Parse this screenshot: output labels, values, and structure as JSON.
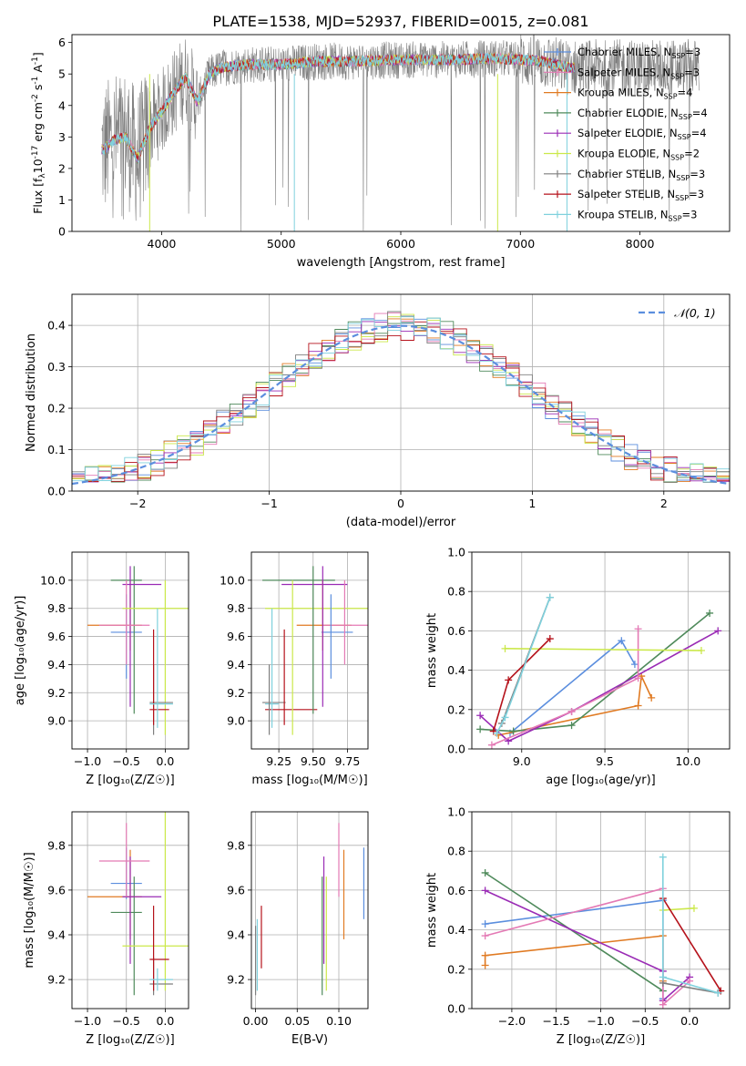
{
  "title": "PLATE=1538, MJD=52937, FIBERID=0015, z=0.081",
  "colors": [
    "#5b8ede",
    "#e07a22",
    "#4f8a5b",
    "#9a2bb5",
    "#e47ab5",
    "#cbe84a",
    "#7f7f7f",
    "#b5121b",
    "#7fd1dd"
  ],
  "chart_data": [
    {
      "type": "line",
      "id": "spectrum",
      "xlabel": "wavelength [Angstrom, rest frame]",
      "ylabel_parts": [
        "Flux [f",
        "λ",
        "10",
        "-17",
        " erg cm",
        "-2",
        " s",
        "-1",
        " A",
        "-1",
        "]"
      ],
      "xlim": [
        3250,
        8750
      ],
      "ylim": [
        0,
        6.25
      ],
      "xticks": [
        4000,
        5000,
        6000,
        7000,
        8000
      ],
      "yticks": [
        0,
        1,
        2,
        3,
        4,
        5,
        6
      ],
      "continuum": {
        "wavelength": [
          3520,
          3600,
          3700,
          3800,
          3900,
          4000,
          4100,
          4200,
          4300,
          4400,
          4500,
          4700,
          5000,
          5300,
          5600,
          6000,
          6400,
          6800,
          7200,
          7400
        ],
        "flux": [
          2.6,
          2.9,
          3.0,
          2.3,
          3.3,
          3.8,
          4.4,
          4.9,
          4.1,
          5.0,
          5.2,
          5.3,
          5.3,
          5.4,
          5.4,
          5.45,
          5.45,
          5.5,
          5.4,
          5.2
        ]
      },
      "data_range": [
        3500,
        8500
      ],
      "model_range": [
        3500,
        7450
      ],
      "legend": [
        {
          "label": "Chabrier MILES",
          "nssp": "3",
          "color": "#5b8ede"
        },
        {
          "label": "Salpeter MILES",
          "nssp": "3",
          "color": "#e47ab5"
        },
        {
          "label": "Kroupa MILES",
          "nssp": "4",
          "color": "#e07a22"
        },
        {
          "label": "Chabrier ELODIE",
          "nssp": "4",
          "color": "#4f8a5b"
        },
        {
          "label": "Salpeter ELODIE",
          "nssp": "4",
          "color": "#9a2bb5"
        },
        {
          "label": "Kroupa ELODIE",
          "nssp": "2",
          "color": "#cbe84a"
        },
        {
          "label": "Chabrier STELIB",
          "nssp": "3",
          "color": "#7f7f7f"
        },
        {
          "label": "Salpeter STELIB",
          "nssp": "3",
          "color": "#b5121b"
        },
        {
          "label": "Kroupa STELIB",
          "nssp": "3",
          "color": "#7fd1dd"
        }
      ]
    },
    {
      "type": "histogram",
      "id": "residuals",
      "xlabel": "(data-model)/error",
      "ylabel": "Normed distribution",
      "xlim": [
        -2.5,
        2.5
      ],
      "ylim": [
        0,
        0.475
      ],
      "xticks": [
        -2,
        -1,
        0,
        1,
        2
      ],
      "yticks": [
        0,
        0.1,
        0.2,
        0.3,
        0.4
      ],
      "bin_width": 0.1,
      "gaussian": {
        "label": "𝒩(0, 1)",
        "mean": 0,
        "sigma": 1,
        "color": "#5b8ede"
      }
    },
    {
      "type": "errorbar",
      "id": "age-vs-z",
      "xlabel": "Z [log₁₀(Z/Z☉)]",
      "ylabel": "age  [log₁₀(age/yr)]",
      "xlim": [
        -1.2,
        0.3
      ],
      "ylim": [
        8.8,
        10.2
      ],
      "xticks": [
        -1.0,
        -0.5,
        0.0
      ],
      "yticks": [
        9.0,
        9.2,
        9.4,
        9.6,
        9.8,
        10.0
      ]
    },
    {
      "type": "errorbar",
      "id": "age-vs-mass",
      "xlabel": "mass [log₁₀(M/M☉)]",
      "xlim": [
        9.05,
        9.9
      ],
      "ylim": [
        8.8,
        10.2
      ],
      "xticks": [
        9.25,
        9.5,
        9.75
      ],
      "yticks": [
        9.0,
        9.2,
        9.4,
        9.6,
        9.8,
        10.0
      ]
    },
    {
      "type": "line",
      "id": "weight-vs-age",
      "xlabel": "age  [log₁₀(age/yr)]",
      "ylabel": "mass weight",
      "xlim": [
        8.7,
        10.25
      ],
      "ylim": [
        0,
        1.0
      ],
      "xticks": [
        9.0,
        9.5,
        10.0
      ],
      "yticks": [
        0.0,
        0.2,
        0.4,
        0.6,
        0.8,
        1.0
      ],
      "series": [
        {
          "color": "#5b8ede",
          "x": [
            8.93,
            9.6,
            9.68
          ],
          "y": [
            0.08,
            0.55,
            0.43
          ]
        },
        {
          "color": "#e07a22",
          "x": [
            8.86,
            9.7,
            9.72,
            9.78
          ],
          "y": [
            0.07,
            0.22,
            0.37,
            0.26
          ]
        },
        {
          "color": "#4f8a5b",
          "x": [
            8.75,
            8.95,
            9.3,
            10.13
          ],
          "y": [
            0.1,
            0.09,
            0.12,
            0.69
          ]
        },
        {
          "color": "#9a2bb5",
          "x": [
            8.75,
            8.92,
            9.3,
            10.18
          ],
          "y": [
            0.17,
            0.04,
            0.19,
            0.6
          ]
        },
        {
          "color": "#e47ab5",
          "x": [
            8.82,
            9.3,
            9.7,
            9.7
          ],
          "y": [
            0.02,
            0.19,
            0.36,
            0.61
          ]
        },
        {
          "color": "#cbe84a",
          "x": [
            8.9,
            10.08
          ],
          "y": [
            0.51,
            0.5
          ]
        },
        {
          "color": "#7f7f7f",
          "x": [
            8.88,
            9.17
          ],
          "y": [
            0.13,
            0.77
          ]
        },
        {
          "color": "#b5121b",
          "x": [
            8.83,
            8.92,
            9.17
          ],
          "y": [
            0.09,
            0.35,
            0.56
          ]
        },
        {
          "color": "#7fd1dd",
          "x": [
            8.85,
            8.9,
            9.17
          ],
          "y": [
            0.08,
            0.16,
            0.77
          ]
        }
      ]
    },
    {
      "type": "errorbar",
      "id": "mass-vs-z",
      "xlabel": "Z [log₁₀(Z/Z☉)]",
      "ylabel": "mass [log₁₀(M/M☉)]",
      "xlim": [
        -1.2,
        0.3
      ],
      "ylim": [
        9.07,
        9.95
      ],
      "xticks": [
        -1.0,
        -0.5,
        0.0
      ],
      "yticks": [
        9.2,
        9.4,
        9.6,
        9.8
      ]
    },
    {
      "type": "errorbar",
      "id": "mass-vs-ebv",
      "xlabel": "E(B-V)",
      "xlim": [
        -0.005,
        0.135
      ],
      "ylim": [
        9.07,
        9.95
      ],
      "xticks": [
        0.0,
        0.05,
        0.1
      ],
      "yticks": [
        9.2,
        9.4,
        9.6,
        9.8
      ]
    },
    {
      "type": "line",
      "id": "weight-vs-z",
      "xlabel": "Z [log₁₀(Z/Z☉)]",
      "ylabel": "mass weight",
      "xlim": [
        -2.45,
        0.45
      ],
      "ylim": [
        0,
        1.0
      ],
      "xticks": [
        -2.0,
        -1.5,
        -1.0,
        -0.5,
        0.0
      ],
      "yticks": [
        0.0,
        0.2,
        0.4,
        0.6,
        0.8,
        1.0
      ],
      "series": [
        {
          "color": "#5b8ede",
          "x": [
            -2.3,
            -0.3,
            -0.3
          ],
          "y": [
            0.43,
            0.55,
            0.05
          ]
        },
        {
          "color": "#e07a22",
          "x": [
            -2.3,
            -2.3,
            -0.3,
            -0.3
          ],
          "y": [
            0.22,
            0.27,
            0.37,
            0.14
          ]
        },
        {
          "color": "#4f8a5b",
          "x": [
            -2.3,
            -0.3
          ],
          "y": [
            0.69,
            0.09
          ]
        },
        {
          "color": "#9a2bb5",
          "x": [
            -2.3,
            -0.3,
            -0.3,
            0.0
          ],
          "y": [
            0.6,
            0.19,
            0.04,
            0.16
          ]
        },
        {
          "color": "#e47ab5",
          "x": [
            -2.3,
            -0.3,
            -0.3,
            0.0
          ],
          "y": [
            0.37,
            0.61,
            0.02,
            0.14
          ]
        },
        {
          "color": "#cbe84a",
          "x": [
            -0.3,
            0.05
          ],
          "y": [
            0.5,
            0.51
          ]
        },
        {
          "color": "#7f7f7f",
          "x": [
            -0.3,
            0.32
          ],
          "y": [
            0.13,
            0.08
          ]
        },
        {
          "color": "#b5121b",
          "x": [
            -0.3,
            0.35
          ],
          "y": [
            0.56,
            0.09
          ]
        },
        {
          "color": "#7fd1dd",
          "x": [
            -0.3,
            -0.3,
            0.32
          ],
          "y": [
            0.77,
            0.16,
            0.08
          ]
        }
      ]
    }
  ],
  "errorbars": [
    {
      "color": "#5b8ede",
      "z": -0.5,
      "zerr": [
        -0.7,
        -0.3
      ],
      "age": 9.63,
      "ageerr": [
        9.3,
        9.9
      ],
      "mass": 9.63,
      "masserr": [
        9.56,
        9.79
      ],
      "masscross": 9.63,
      "ebv": 0.13,
      "ebverr": [
        9.47,
        9.79
      ]
    },
    {
      "color": "#e07a22",
      "z": -0.45,
      "zerr": [
        -1.0,
        -0.3
      ],
      "age": 9.68,
      "ageerr": [
        9.5,
        10.0
      ],
      "mass": 9.57,
      "masserr": [
        9.38,
        9.78
      ],
      "masscross": 9.68,
      "ebv": 0.106,
      "ebverr": [
        9.38,
        9.78
      ]
    },
    {
      "color": "#4f8a5b",
      "z": -0.4,
      "zerr": [
        -0.7,
        -0.3
      ],
      "age": 10.0,
      "ageerr": [
        9.05,
        10.1
      ],
      "mass": 9.5,
      "masserr": [
        9.13,
        9.66
      ],
      "masscross": 10.0,
      "ebv": 0.08,
      "ebverr": [
        9.13,
        9.66
      ]
    },
    {
      "color": "#9a2bb5",
      "z": -0.45,
      "zerr": [
        -0.55,
        -0.05
      ],
      "age": 9.97,
      "ageerr": [
        9.1,
        10.1
      ],
      "mass": 9.57,
      "masserr": [
        9.27,
        9.75
      ],
      "masscross": 9.97,
      "ebv": 0.082,
      "ebverr": [
        9.27,
        9.75
      ]
    },
    {
      "color": "#e47ab5",
      "z": -0.5,
      "zerr": [
        -0.85,
        -0.2
      ],
      "age": 9.68,
      "ageerr": [
        9.4,
        10.0
      ],
      "mass": 9.73,
      "masserr": [
        9.57,
        9.9
      ],
      "masscross": 9.68,
      "ebv": 0.1,
      "ebverr": [
        9.57,
        9.9
      ]
    },
    {
      "color": "#cbe84a",
      "z": 0.0,
      "zerr": [
        -0.55,
        0.3
      ],
      "age": 9.8,
      "ageerr": [
        8.9,
        10.0
      ],
      "mass": 9.35,
      "masserr": [
        9.15,
        10.05
      ],
      "masscross": 9.8,
      "ebv": 0.085,
      "ebverr": [
        9.15,
        9.66
      ]
    },
    {
      "color": "#7f7f7f",
      "z": -0.15,
      "zerr": [
        -0.2,
        0.1
      ],
      "age": 9.13,
      "ageerr": [
        8.9,
        9.4
      ],
      "mass": 9.18,
      "masserr": [
        9.13,
        9.3
      ],
      "masscross": 9.13,
      "ebv": 0.0,
      "ebverr": [
        9.13,
        9.44
      ]
    },
    {
      "color": "#b5121b",
      "z": -0.15,
      "zerr": [
        -0.2,
        0.05
      ],
      "age": 9.08,
      "ageerr": [
        8.97,
        9.65
      ],
      "mass": 9.29,
      "masserr": [
        9.15,
        9.53
      ],
      "masscross": 9.08,
      "ebv": 0.007,
      "ebverr": [
        9.25,
        9.53
      ]
    },
    {
      "color": "#7fd1dd",
      "z": -0.1,
      "zerr": [
        -0.2,
        0.1
      ],
      "age": 9.12,
      "ageerr": [
        8.95,
        9.8
      ],
      "mass": 9.2,
      "masserr": [
        9.15,
        9.25
      ],
      "masscross": 9.12,
      "ebv": 0.002,
      "ebverr": [
        9.15,
        9.47
      ]
    }
  ]
}
